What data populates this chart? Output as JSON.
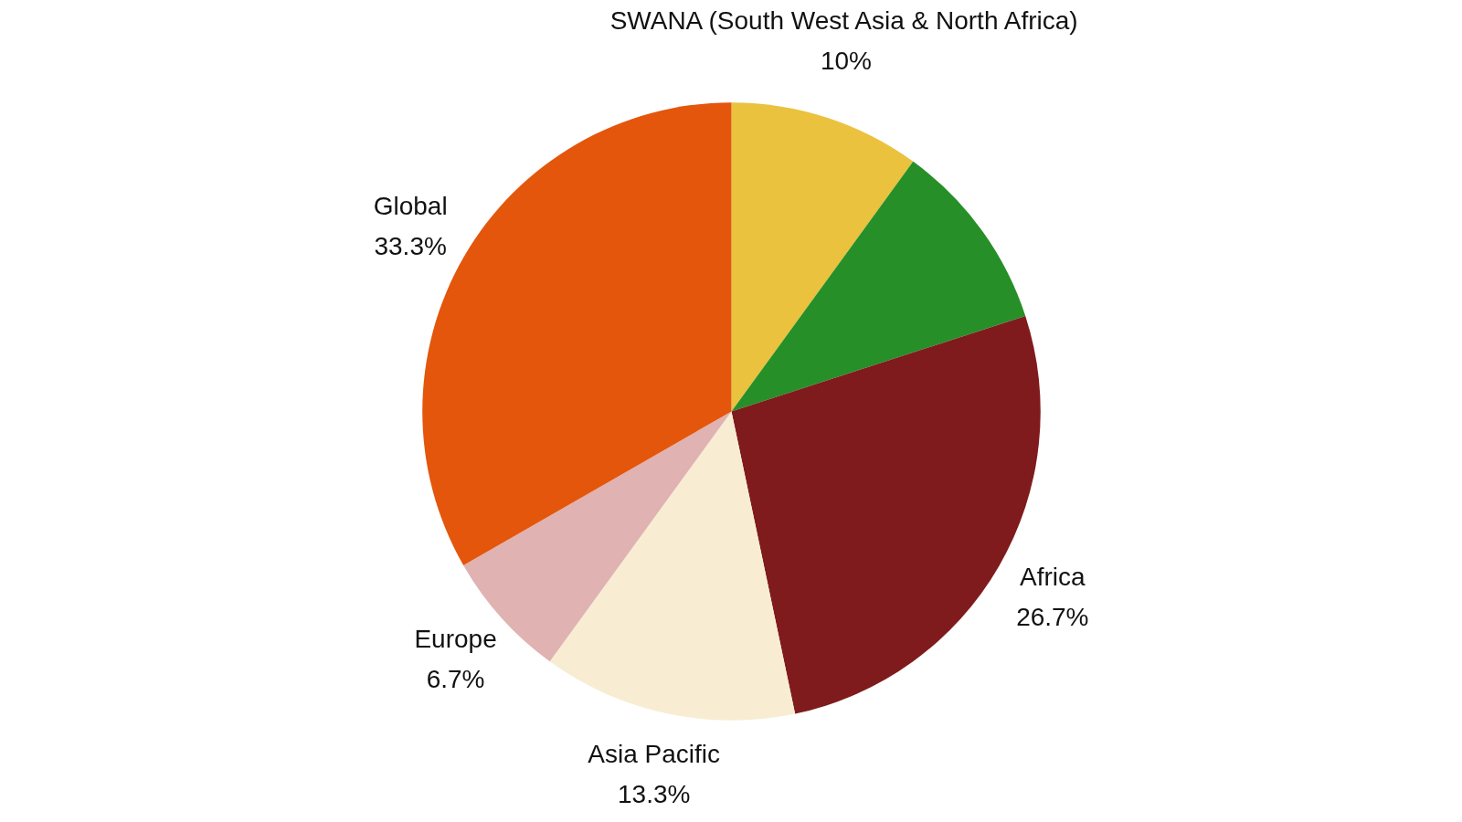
{
  "chart_data": {
    "type": "pie",
    "categories": [
      "SWANA (South West Asia & North Africa)",
      null,
      "Africa",
      "Asia Pacific",
      "Europe",
      "Global"
    ],
    "values": [
      10,
      10,
      26.7,
      13.3,
      6.7,
      33.3
    ],
    "colors": [
      "#eac23e",
      "#268f28",
      "#7f1b1d",
      "#f8edd2",
      "#e0b2b1",
      "#e3560b"
    ],
    "value_labels": [
      "10%",
      null,
      "26.7%",
      "13.3%",
      "6.7%",
      "33.3%"
    ]
  }
}
